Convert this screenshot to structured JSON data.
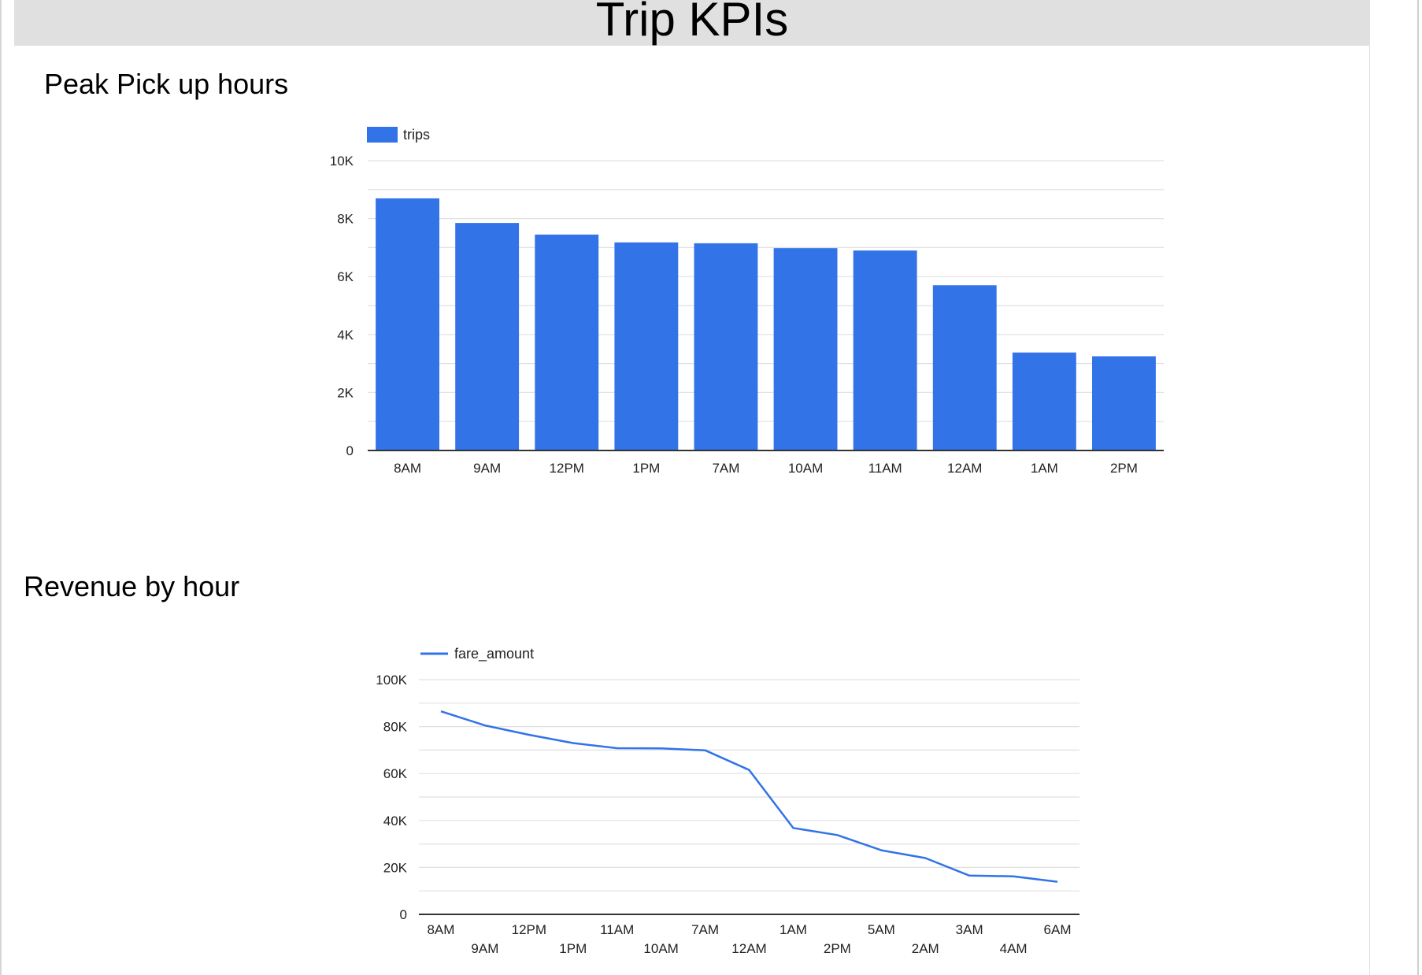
{
  "page": {
    "title": "Trip KPIs"
  },
  "colors": {
    "series": "#3273e7",
    "header_bg": "#e0e0e0",
    "grid": "#e0e0e0",
    "axis": "#333333"
  },
  "chart_data": [
    {
      "type": "bar",
      "title": "Peak Pick up hours",
      "categories": [
        "8AM",
        "9AM",
        "12PM",
        "1PM",
        "7AM",
        "10AM",
        "11AM",
        "12AM",
        "1AM",
        "2PM"
      ],
      "series": [
        {
          "name": "trips",
          "values": [
            8700,
            7850,
            7450,
            7180,
            7150,
            6980,
            6900,
            5700,
            3380,
            3250
          ]
        }
      ],
      "ylim": [
        0,
        10000
      ],
      "yticks": [
        0,
        2000,
        4000,
        6000,
        8000,
        10000
      ],
      "ytick_labels": [
        "0",
        "2K",
        "4K",
        "6K",
        "8K",
        "10K"
      ],
      "grid": true,
      "legend": "top-left"
    },
    {
      "type": "line",
      "title": "Revenue by hour",
      "categories": [
        "8AM",
        "9AM",
        "12PM",
        "1PM",
        "11AM",
        "10AM",
        "7AM",
        "12AM",
        "1AM",
        "2PM",
        "5AM",
        "2AM",
        "3AM",
        "4AM",
        "6AM"
      ],
      "series": [
        {
          "name": "fare_amount",
          "values": [
            86500,
            80500,
            76500,
            73000,
            70800,
            70700,
            69900,
            61500,
            36800,
            33800,
            27300,
            24000,
            16500,
            16200,
            13900
          ]
        }
      ],
      "ylim": [
        0,
        100000
      ],
      "yticks": [
        0,
        20000,
        40000,
        60000,
        80000,
        100000
      ],
      "ytick_labels": [
        "0",
        "20K",
        "40K",
        "60K",
        "80K",
        "100K"
      ],
      "grid": true,
      "legend": "top-left"
    }
  ]
}
